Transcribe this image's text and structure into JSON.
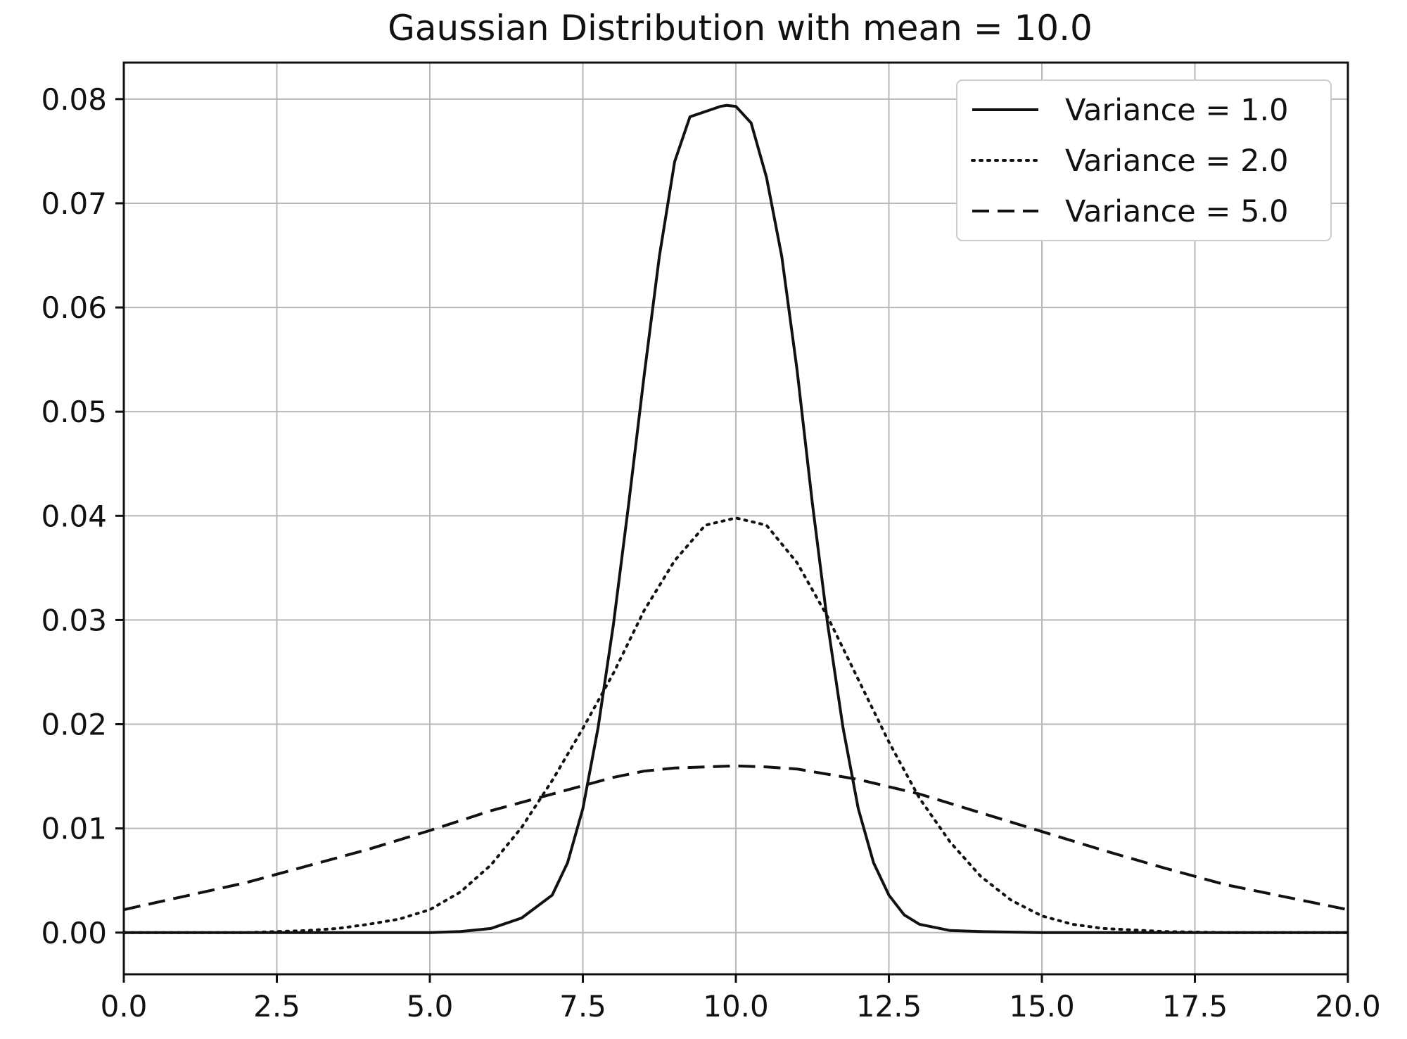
{
  "chart_data": {
    "type": "line",
    "title": "Gaussian Distribution with mean = 10.0",
    "xlabel": "",
    "ylabel": "",
    "xlim": [
      0.0,
      20.0
    ],
    "ylim": [
      -0.004,
      0.0835
    ],
    "x_ticks": [
      0.0,
      2.5,
      5.0,
      7.5,
      10.0,
      12.5,
      15.0,
      17.5,
      20.0
    ],
    "x_tick_labels": [
      "0.0",
      "2.5",
      "5.0",
      "7.5",
      "10.0",
      "12.5",
      "15.0",
      "17.5",
      "20.0"
    ],
    "y_ticks": [
      0.0,
      0.01,
      0.02,
      0.03,
      0.04,
      0.05,
      0.06,
      0.07,
      0.08
    ],
    "y_tick_labels": [
      "0.00",
      "0.01",
      "0.02",
      "0.03",
      "0.04",
      "0.05",
      "0.06",
      "0.07",
      "0.08"
    ],
    "grid": true,
    "legend_position": "top-right",
    "series": [
      {
        "name": "Variance = 1.0",
        "style": "solid",
        "color": "#111111",
        "x": [
          0.0,
          4.0,
          5.0,
          5.5,
          6.0,
          6.5,
          7.0,
          7.25,
          7.5,
          7.75,
          8.0,
          8.25,
          8.5,
          8.75,
          9.0,
          9.25,
          9.5,
          9.75,
          9.85,
          10.0,
          10.25,
          10.5,
          10.75,
          11.0,
          11.25,
          11.5,
          11.75,
          12.0,
          12.25,
          12.5,
          12.75,
          13.0,
          13.5,
          14.0,
          15.0,
          16.0,
          20.0
        ],
        "y": [
          0.0,
          0.0,
          0.0,
          0.0001,
          0.0004,
          0.0014,
          0.0036,
          0.0067,
          0.0119,
          0.0197,
          0.0296,
          0.0412,
          0.0534,
          0.0649,
          0.074,
          0.0783,
          0.0788,
          0.0793,
          0.0794,
          0.0793,
          0.0777,
          0.0725,
          0.0649,
          0.054,
          0.0412,
          0.0296,
          0.0197,
          0.0119,
          0.0067,
          0.0036,
          0.0017,
          0.0008,
          0.0002,
          0.0001,
          0.0,
          0.0,
          0.0
        ]
      },
      {
        "name": "Variance = 2.0",
        "style": "dotted",
        "color": "#111111",
        "x": [
          0.0,
          2.0,
          3.0,
          3.5,
          4.0,
          4.5,
          5.0,
          5.5,
          6.0,
          6.5,
          7.0,
          7.5,
          8.0,
          8.5,
          9.0,
          9.5,
          10.0,
          10.5,
          11.0,
          11.5,
          12.0,
          12.5,
          13.0,
          13.5,
          14.0,
          14.5,
          15.0,
          15.5,
          16.0,
          17.0,
          18.0,
          20.0
        ],
        "y": [
          0.0,
          0.0,
          0.0002,
          0.0004,
          0.0008,
          0.0013,
          0.0022,
          0.0039,
          0.0065,
          0.0101,
          0.0146,
          0.0196,
          0.0249,
          0.0309,
          0.0357,
          0.0391,
          0.0398,
          0.0391,
          0.0355,
          0.0303,
          0.0243,
          0.0183,
          0.0129,
          0.0087,
          0.0054,
          0.0031,
          0.0016,
          0.0008,
          0.0004,
          0.0001,
          0.0,
          0.0
        ]
      },
      {
        "name": "Variance = 5.0",
        "style": "dashed",
        "color": "#111111",
        "x": [
          0.0,
          1.0,
          2.0,
          3.0,
          4.0,
          5.0,
          6.0,
          7.0,
          7.5,
          8.0,
          8.5,
          9.0,
          9.5,
          10.0,
          10.5,
          11.0,
          11.5,
          12.0,
          12.5,
          13.0,
          14.0,
          15.0,
          16.0,
          17.0,
          18.0,
          19.0,
          20.0
        ],
        "y": [
          0.0022,
          0.0035,
          0.0048,
          0.0064,
          0.008,
          0.0098,
          0.0117,
          0.0133,
          0.0141,
          0.0149,
          0.0155,
          0.0158,
          0.0159,
          0.016,
          0.0159,
          0.0157,
          0.0152,
          0.0147,
          0.014,
          0.0133,
          0.0115,
          0.0097,
          0.0079,
          0.0062,
          0.0046,
          0.0034,
          0.0022
        ]
      }
    ]
  }
}
